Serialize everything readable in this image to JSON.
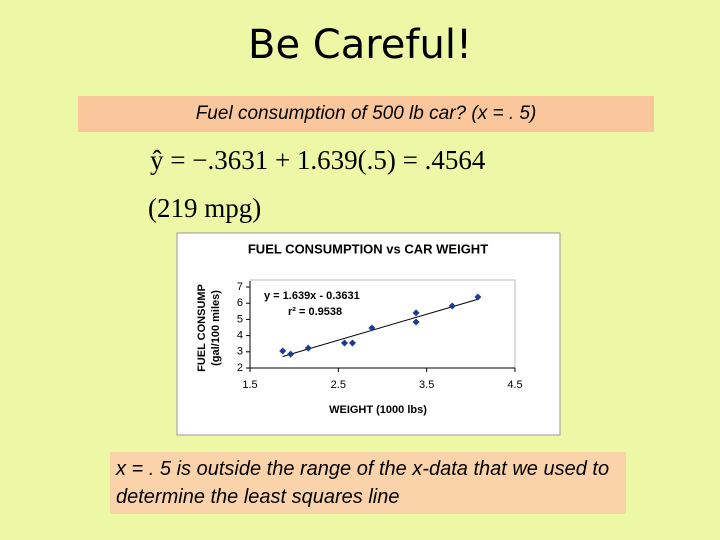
{
  "slide": {
    "title": "Be Careful!",
    "question": "Fuel consumption of 500 lb car? (x = . 5)",
    "equation": "ŷ = −.3631 + 1.639(.5) = .4564",
    "result": "(219 mpg)",
    "note": "x = . 5 is outside the range of the x-data that we used to determine the least squares line"
  },
  "chart_data": {
    "type": "scatter",
    "title": "FUEL CONSUMPTION vs CAR WEIGHT",
    "x_label": "WEIGHT (1000 lbs)",
    "y_label": [
      "FUEL CONSUMP",
      "(gal/100 miles)"
    ],
    "annotations": [
      "y = 1.639x - 0.3631",
      "r² = 0.9538"
    ],
    "color": "#1f3a93",
    "trendline": true,
    "x": [
      1.87,
      1.96,
      2.16,
      2.57,
      2.66,
      2.88,
      3.38,
      3.38,
      3.79,
      4.08
    ],
    "values": [
      3.05,
      2.86,
      3.23,
      3.54,
      3.54,
      4.47,
      5.4,
      4.84,
      5.83,
      6.38
    ],
    "xlim": [
      1.5,
      4.5
    ],
    "xticks": [
      1.5,
      2.5,
      3.5,
      4.5
    ],
    "ylim": [
      2,
      7
    ],
    "yticks": [
      2,
      3,
      4,
      5,
      6,
      7
    ]
  }
}
